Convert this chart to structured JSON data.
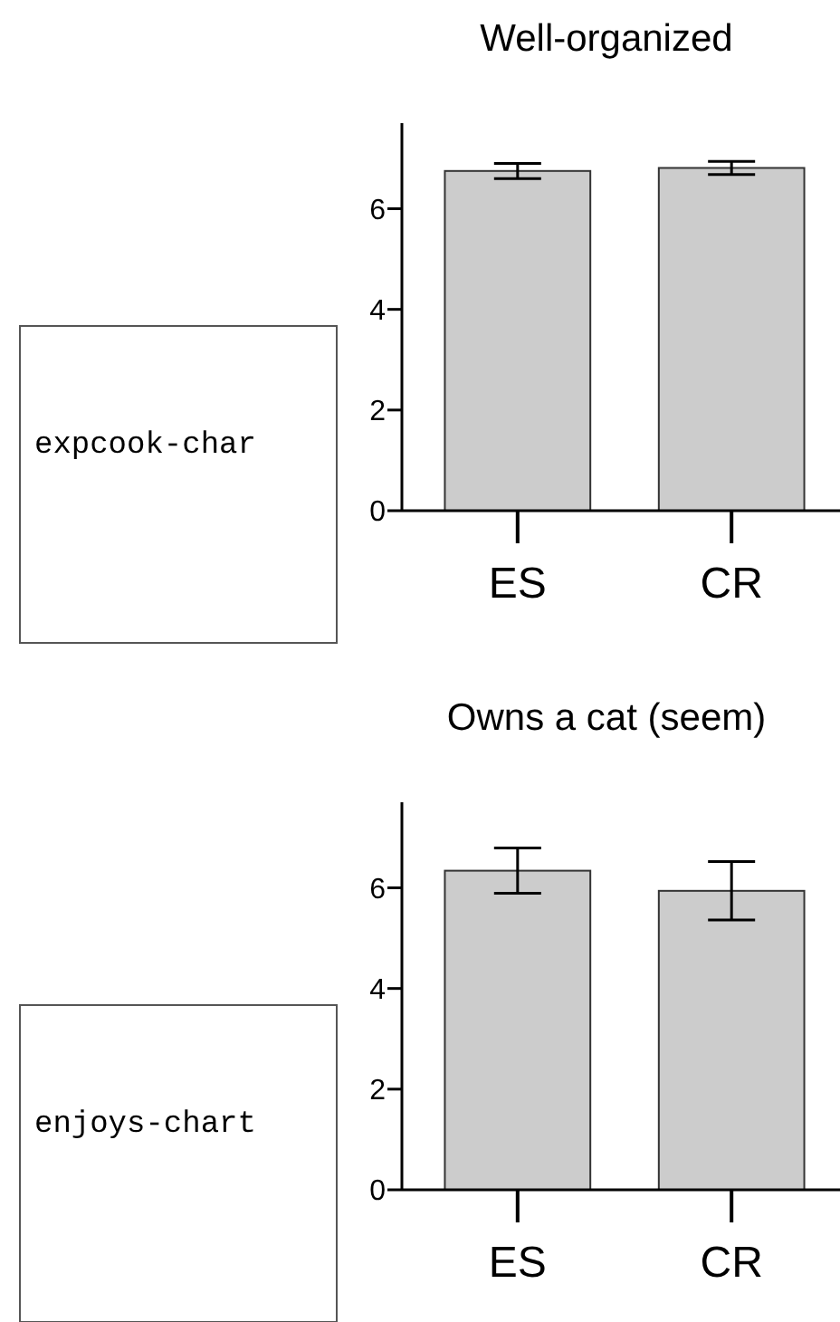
{
  "chart_data": [
    {
      "type": "bar",
      "title": "Well-organized",
      "categories": [
        "ES",
        "CR"
      ],
      "values": [
        6.75,
        6.81
      ],
      "errors": [
        0.15,
        0.13
      ],
      "color": "#cccccc",
      "ylim": [
        0,
        7.7
      ],
      "yticks": [
        0,
        2,
        4,
        6
      ],
      "grid": false,
      "annotations": [
        "expcook-char"
      ]
    },
    {
      "type": "bar",
      "title": "Owns a cat (seem)",
      "categories": [
        "ES",
        "CR"
      ],
      "values": [
        6.34,
        5.94
      ],
      "errors": [
        0.45,
        0.58
      ],
      "color": "#cccccc",
      "ylim": [
        0,
        7.7
      ],
      "yticks": [
        0,
        2,
        4,
        6
      ],
      "grid": false,
      "annotations": [
        "enjoys-chart"
      ]
    }
  ]
}
